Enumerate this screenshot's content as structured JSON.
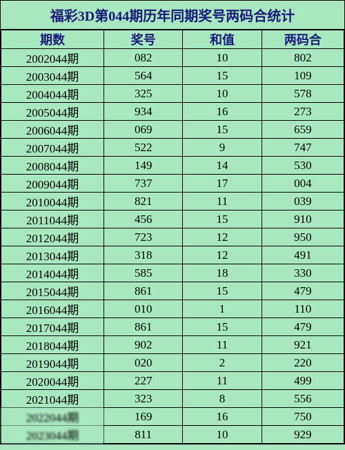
{
  "title": "福彩3D第044期历年同期奖号两码合统计",
  "columns": [
    "期数",
    "奖号",
    "和值",
    "两码合"
  ],
  "rows": [
    [
      "2002044期",
      "082",
      "10",
      "802"
    ],
    [
      "2003044期",
      "564",
      "15",
      "109"
    ],
    [
      "2004044期",
      "325",
      "10",
      "578"
    ],
    [
      "2005044期",
      "934",
      "16",
      "273"
    ],
    [
      "2006044期",
      "069",
      "15",
      "659"
    ],
    [
      "2007044期",
      "522",
      "9",
      "747"
    ],
    [
      "2008044期",
      "149",
      "14",
      "530"
    ],
    [
      "2009044期",
      "737",
      "17",
      "004"
    ],
    [
      "2010044期",
      "821",
      "11",
      "039"
    ],
    [
      "2011044期",
      "456",
      "15",
      "910"
    ],
    [
      "2012044期",
      "723",
      "12",
      "950"
    ],
    [
      "2013044期",
      "318",
      "12",
      "491"
    ],
    [
      "2014044期",
      "585",
      "18",
      "330"
    ],
    [
      "2015044期",
      "861",
      "15",
      "479"
    ],
    [
      "2016044期",
      "010",
      "1",
      "110"
    ],
    [
      "2017044期",
      "861",
      "15",
      "479"
    ],
    [
      "2018044期",
      "902",
      "11",
      "921"
    ],
    [
      "2019044期",
      "020",
      "2",
      "220"
    ],
    [
      "2020044期",
      "227",
      "11",
      "499"
    ],
    [
      "2021044期",
      "323",
      "8",
      "556"
    ],
    [
      "2022044期",
      "169",
      "16",
      "750"
    ],
    [
      "2023044期",
      "811",
      "10",
      "929"
    ]
  ],
  "blur_rows": [
    20,
    21
  ],
  "colors": {
    "background": "#a8e8c0",
    "border": "#000000",
    "header_text": "#1a1a7a",
    "body_text": "#000000"
  },
  "col_widths_pct": [
    30,
    23,
    23,
    24
  ],
  "font_family": "SimSun",
  "title_fontsize_pt": 15,
  "header_fontsize_pt": 14,
  "cell_fontsize_pt": 13
}
